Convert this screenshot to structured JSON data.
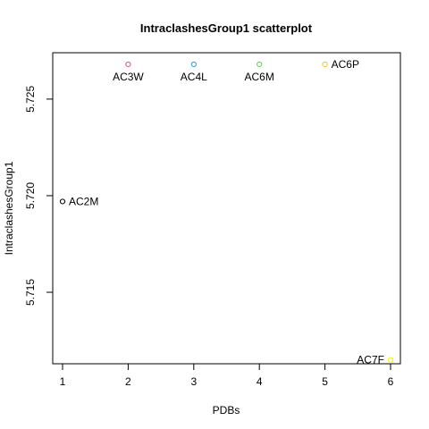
{
  "chart_data": {
    "type": "scatter",
    "title": "IntraclashesGroup1 scatterplot",
    "xlabel": "PDBs",
    "ylabel": "IntraclashesGroup1",
    "xlim": [
      0.85,
      6.15
    ],
    "ylim": [
      5.7113,
      5.7274
    ],
    "xticks": [
      1,
      2,
      3,
      4,
      5,
      6
    ],
    "yticks": [
      5.715,
      5.72,
      5.725
    ],
    "xtick_labels": [
      "1",
      "2",
      "3",
      "4",
      "5",
      "6"
    ],
    "ytick_labels": [
      "5.715",
      "5.720",
      "5.725"
    ],
    "grid": false,
    "legend": "none",
    "points": [
      {
        "x": 1,
        "y": 5.7197,
        "label": "AC2M",
        "color": "#000000",
        "label_pos": "right"
      },
      {
        "x": 2,
        "y": 5.7268,
        "label": "AC3W",
        "color": "#DF536B",
        "label_pos": "below"
      },
      {
        "x": 3,
        "y": 5.7268,
        "label": "AC4L",
        "color": "#2297E6",
        "label_pos": "below"
      },
      {
        "x": 4,
        "y": 5.7268,
        "label": "AC6M",
        "color": "#61D04F",
        "label_pos": "below"
      },
      {
        "x": 5,
        "y": 5.7268,
        "label": "AC6P",
        "color": "#F5C710",
        "label_pos": "right"
      },
      {
        "x": 6,
        "y": 5.7115,
        "label": "AC7F",
        "color": "#F5F500",
        "label_pos": "left"
      }
    ]
  }
}
